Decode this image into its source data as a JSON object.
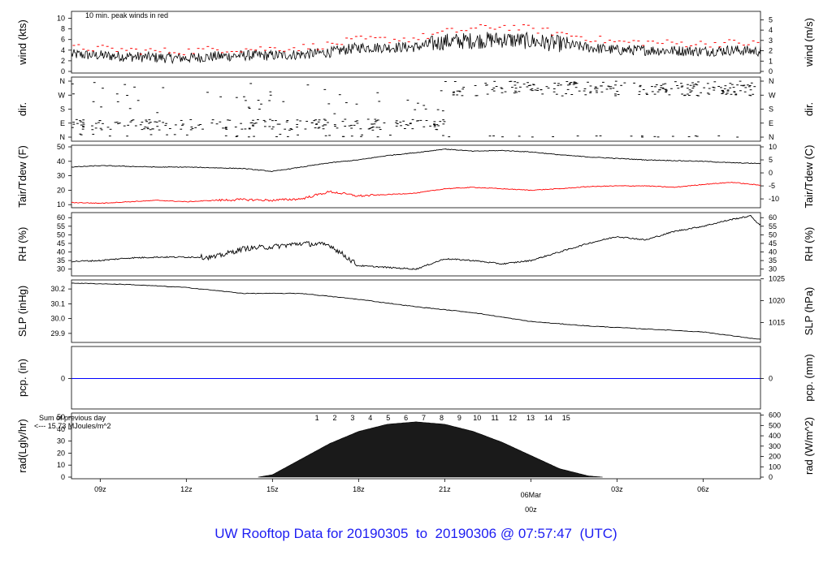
{
  "footer_title": "UW Rooftop Data for 20190305  to  20190306 @ 07:57:47  (UTC)",
  "colors": {
    "frame": "#000000",
    "peak": "#ff0000",
    "dew": "#ff0000",
    "precip": "#0000ff",
    "purple": "#8a2be2",
    "title": "#1d1df2",
    "date": "#ff0000"
  },
  "chart_data": [
    {
      "panel": "wind",
      "type": "line",
      "ylabel_left": "wind (kts)",
      "ylabel_right": "wind (m/s)",
      "annotation": "10 min. peak winds in red",
      "yticks_left": [
        "0",
        "2",
        "4",
        "6",
        "8",
        "10"
      ],
      "yticks_right": [
        "0",
        "1",
        "2",
        "3",
        "4",
        "5"
      ],
      "ylim": [
        0,
        11
      ],
      "series": [
        {
          "values_x": [
            "08z",
            "09z",
            "10z",
            "11z",
            "12z",
            "13z",
            "14z",
            "15z",
            "16z",
            "17z",
            "18z",
            "19z",
            "20z",
            "21z",
            "22z",
            "23z",
            "00z",
            "01z",
            "02z",
            "03z",
            "04z",
            "05z",
            "06z",
            "07z",
            "07:57z"
          ],
          "values_y": [
            3.2,
            3.0,
            2.8,
            2.6,
            2.5,
            2.8,
            3.0,
            3.0,
            3.2,
            3.6,
            4.5,
            4.5,
            4.6,
            5.6,
            5.8,
            6.0,
            5.7,
            5.2,
            4.5,
            4.0,
            4.0,
            3.9,
            3.8,
            4.0,
            3.8
          ]
        },
        {
          "values_x": [
            "08z",
            "09z",
            "10z",
            "11z",
            "12z",
            "13z",
            "14z",
            "15z",
            "16z",
            "17z",
            "18z",
            "19z",
            "20z",
            "21z",
            "22z",
            "23z",
            "00z",
            "01z",
            "02z",
            "03z",
            "04z",
            "05z",
            "06z",
            "07z",
            "07:57z"
          ],
          "values_y": [
            4.5,
            4.3,
            4.0,
            3.8,
            3.8,
            4.2,
            4.2,
            4.3,
            4.5,
            5.0,
            6.0,
            6.0,
            6.2,
            7.4,
            8.0,
            8.5,
            8.0,
            7.2,
            6.3,
            5.5,
            5.5,
            5.3,
            5.2,
            5.4,
            5.2
          ]
        }
      ]
    },
    {
      "panel": "direction",
      "type": "scatter",
      "ylabel_left": "dir.",
      "ylabel_right": "dir.",
      "yticks": [
        "N",
        "E",
        "S",
        "W",
        "N"
      ]
    },
    {
      "panel": "temperature",
      "type": "line",
      "ylabel_left": "Tair/Tdew (F)",
      "ylabel_right": "Tair/Tdew (C)",
      "yticks_left": [
        "10",
        "20",
        "30",
        "40",
        "50"
      ],
      "yticks_right": [
        "-10",
        "-5",
        "0",
        "5",
        "10"
      ],
      "ylim": [
        9,
        50
      ],
      "series": [
        {
          "values_x": [
            "08z",
            "09z",
            "10z",
            "11z",
            "12z",
            "13z",
            "14z",
            "15z",
            "16z",
            "17z",
            "18z",
            "19z",
            "20z",
            "21z",
            "22z",
            "23z",
            "00z",
            "01z",
            "02z",
            "03z",
            "04z",
            "05z",
            "06z",
            "07z",
            "07:57z"
          ],
          "values_y": [
            36,
            37,
            36.5,
            36,
            36,
            35.5,
            35,
            33,
            36,
            39,
            41,
            44,
            46,
            48.5,
            47,
            47.5,
            46.5,
            44.5,
            43,
            42,
            41,
            40.5,
            40,
            39,
            38.5
          ]
        },
        {
          "values_x": [
            "08z",
            "09z",
            "10z",
            "11z",
            "12z",
            "13z",
            "14z",
            "15z",
            "16z",
            "17z",
            "18z",
            "19z",
            "20z",
            "21z",
            "22z",
            "23z",
            "00z",
            "01z",
            "02z",
            "03z",
            "04z",
            "05z",
            "06z",
            "07z",
            "07:57z"
          ],
          "values_y": [
            11.5,
            11,
            12,
            13,
            12,
            13,
            13.5,
            13,
            14,
            19,
            16,
            17,
            18,
            21,
            22,
            21,
            20,
            21,
            22.5,
            23,
            23,
            22,
            24,
            25.5,
            23.5
          ]
        }
      ]
    },
    {
      "panel": "rh",
      "type": "line",
      "ylabel_left": "RH (%)",
      "ylabel_right": "RH (%)",
      "yticks": [
        "30",
        "35",
        "40",
        "45",
        "50",
        "55",
        "60"
      ],
      "ylim": [
        27,
        62
      ],
      "x": [
        "08z",
        "09z",
        "10z",
        "11z",
        "12z",
        "13z",
        "14z",
        "15z",
        "16z",
        "17z",
        "18z",
        "19z",
        "20z",
        "21z",
        "22z",
        "23z",
        "00z",
        "01z",
        "02z",
        "03z",
        "04z",
        "05z",
        "06z",
        "07z",
        "07:40z",
        "07:57z"
      ],
      "values": [
        34.5,
        35,
        36.5,
        37,
        37,
        37,
        42,
        43,
        45,
        44,
        32,
        31,
        30,
        36,
        35,
        33,
        35,
        40,
        45,
        49,
        47,
        52,
        55,
        59,
        61,
        56
      ]
    },
    {
      "panel": "slp",
      "type": "line",
      "ylabel_left": "SLP (inHg)",
      "ylabel_right": "SLP (hPa)",
      "yticks_left": [
        "29.9",
        "30.0",
        "30.1",
        "30.2"
      ],
      "yticks_right": [
        "1015",
        "1020",
        "1025"
      ],
      "ylim": [
        29.85,
        30.25
      ],
      "x": [
        "08z",
        "10z",
        "12z",
        "14z",
        "16z",
        "18z",
        "20z",
        "22z",
        "00z",
        "02z",
        "04z",
        "06z",
        "07:57z"
      ],
      "values": [
        30.24,
        30.23,
        30.21,
        30.17,
        30.17,
        30.13,
        30.08,
        30.04,
        29.98,
        29.95,
        29.93,
        29.91,
        29.86
      ]
    },
    {
      "panel": "precip",
      "type": "line",
      "ylabel_left": "pcp. (in)",
      "ylabel_right": "pcp. (mm)",
      "yticks_left": [
        "0"
      ],
      "yticks_right": [
        "0"
      ],
      "values": [
        0
      ]
    },
    {
      "panel": "radiation",
      "type": "area",
      "ylabel_left": "rad(Lgly/hr)",
      "ylabel_right": "rad (W/m^2)",
      "yticks_left": [
        "0",
        "10",
        "20",
        "30",
        "40",
        "50"
      ],
      "yticks_right": [
        "0",
        "100",
        "200",
        "300",
        "400",
        "500",
        "600"
      ],
      "ylim": [
        0,
        52
      ],
      "annotation_line1": "Sum of previous day",
      "annotation_line2": "<--- 15.73 MJoules/m^2",
      "hour_labels": [
        "1",
        "2",
        "3",
        "4",
        "5",
        "6",
        "7",
        "8",
        "9",
        "10",
        "11",
        "12",
        "13",
        "14",
        "15"
      ],
      "x_ticks": [
        "09z",
        "12z",
        "15z",
        "18z",
        "21z",
        "",
        "03z",
        "06z"
      ],
      "date_label": "06Mar",
      "date_sub_label": "00z",
      "x": [
        "14:30z",
        "15:00z",
        "16:00z",
        "17:00z",
        "18:00z",
        "19:00z",
        "20:00z",
        "21:00z",
        "22:00z",
        "23:00z",
        "00:00z",
        "01:00z",
        "02:00z",
        "02:30z"
      ],
      "values": [
        0,
        2,
        15,
        28,
        38,
        44,
        46,
        44,
        38,
        29,
        18,
        7,
        1,
        0
      ]
    }
  ]
}
